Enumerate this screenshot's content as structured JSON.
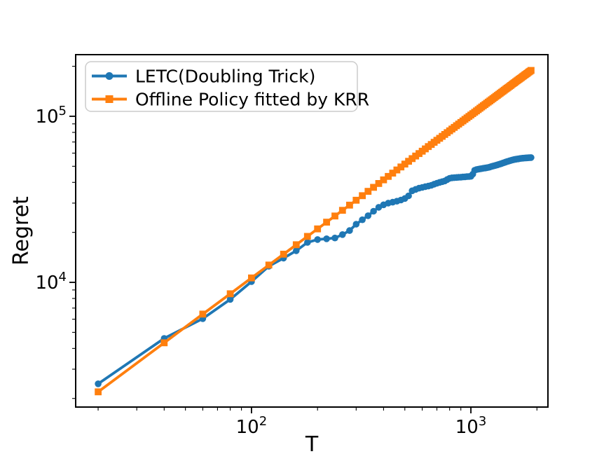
{
  "chart_data": {
    "type": "line",
    "title": "",
    "xlabel": "T",
    "ylabel": "Regret",
    "x_scale": "log",
    "y_scale": "log",
    "xlim": [
      15.8,
      2245
    ],
    "ylim": [
      1775,
      235000
    ],
    "grid": false,
    "legend_position": "upper left",
    "x_ticks_major": [
      {
        "value": 100,
        "mantissa": "10",
        "exponent": "2"
      },
      {
        "value": 1000,
        "mantissa": "10",
        "exponent": "3"
      }
    ],
    "x_ticks_minor": [
      20,
      30,
      40,
      50,
      60,
      70,
      80,
      90,
      200,
      300,
      400,
      500,
      600,
      700,
      800,
      900,
      2000
    ],
    "y_ticks_major": [
      {
        "value": 10000,
        "mantissa": "10",
        "exponent": "4"
      },
      {
        "value": 100000,
        "mantissa": "10",
        "exponent": "5"
      }
    ],
    "y_ticks_minor": [
      2000,
      3000,
      4000,
      5000,
      6000,
      7000,
      8000,
      9000,
      20000,
      30000,
      40000,
      50000,
      60000,
      70000,
      80000,
      90000,
      200000
    ],
    "x": [
      20,
      40,
      60,
      80,
      100,
      120,
      140,
      160,
      180,
      200,
      220,
      240,
      260,
      280,
      300,
      320,
      340,
      360,
      380,
      400,
      420,
      440,
      460,
      480,
      500,
      520,
      540,
      560,
      580,
      600,
      620,
      640,
      660,
      680,
      700,
      720,
      740,
      760,
      780,
      800,
      820,
      840,
      860,
      880,
      900,
      920,
      940,
      960,
      980,
      1000,
      1020,
      1040,
      1060,
      1080,
      1100,
      1120,
      1140,
      1160,
      1180,
      1200,
      1220,
      1240,
      1260,
      1280,
      1300,
      1320,
      1340,
      1360,
      1380,
      1400,
      1420,
      1440,
      1460,
      1480,
      1500,
      1520,
      1540,
      1560,
      1580,
      1600,
      1620,
      1640,
      1660,
      1680,
      1700,
      1720,
      1740,
      1760,
      1780,
      1800,
      1820,
      1840,
      1860,
      1880
    ],
    "series": [
      {
        "name": "LETC(Doubling Trick)",
        "color": "#1f77b4",
        "marker": "circle",
        "values": [
          2450,
          4600,
          6050,
          7900,
          10100,
          12500,
          14000,
          15500,
          17400,
          18100,
          18300,
          18500,
          19400,
          20500,
          22400,
          23800,
          25200,
          26800,
          28300,
          29300,
          30000,
          30400,
          30800,
          31300,
          32000,
          33200,
          35600,
          36300,
          36900,
          37300,
          37700,
          38000,
          38400,
          39000,
          39500,
          40000,
          40400,
          40800,
          41600,
          42300,
          42600,
          42700,
          42800,
          42900,
          43000,
          43100,
          43200,
          43300,
          43400,
          43500,
          44800,
          47300,
          47800,
          48000,
          48200,
          48400,
          48600,
          48800,
          49000,
          49200,
          49500,
          49800,
          50100,
          50400,
          50700,
          51000,
          51300,
          51600,
          51950,
          52300,
          52650,
          53000,
          53300,
          53600,
          53900,
          54200,
          54450,
          54700,
          54900,
          55100,
          55250,
          55400,
          55550,
          55700,
          55800,
          55900,
          56000,
          56100,
          56150,
          56200,
          56250,
          56300,
          56350,
          56400
        ]
      },
      {
        "name": "Offline Policy fitted by KRR",
        "color": "#ff7f0e",
        "marker": "square",
        "values": [
          2192,
          4327,
          6440,
          8539,
          10630,
          12713,
          14786,
          16852,
          18918,
          20977,
          23033,
          25090,
          27137,
          29184,
          31227,
          33266,
          35318,
          37346,
          39383,
          41420,
          43440,
          45480,
          47500,
          49510,
          51540,
          53560,
          55590,
          57610,
          59620,
          61650,
          63660,
          65680,
          67680,
          69700,
          71700,
          73710,
          75720,
          77730,
          79740,
          81740,
          83740,
          85750,
          87750,
          89760,
          91760,
          93760,
          95770,
          97770,
          99770,
          101760,
          103760,
          105760,
          107750,
          109750,
          111740,
          113740,
          115730,
          117730,
          119720,
          121710,
          123700,
          125690,
          127680,
          129670,
          131660,
          133650,
          135630,
          137620,
          139610,
          141590,
          143570,
          145560,
          147540,
          149520,
          151500,
          153470,
          155450,
          157430,
          159400,
          161380,
          163350,
          165320,
          167290,
          169260,
          171230,
          173200,
          175160,
          177130,
          179090,
          181050,
          183020,
          184980,
          186940,
          188900
        ]
      }
    ]
  }
}
